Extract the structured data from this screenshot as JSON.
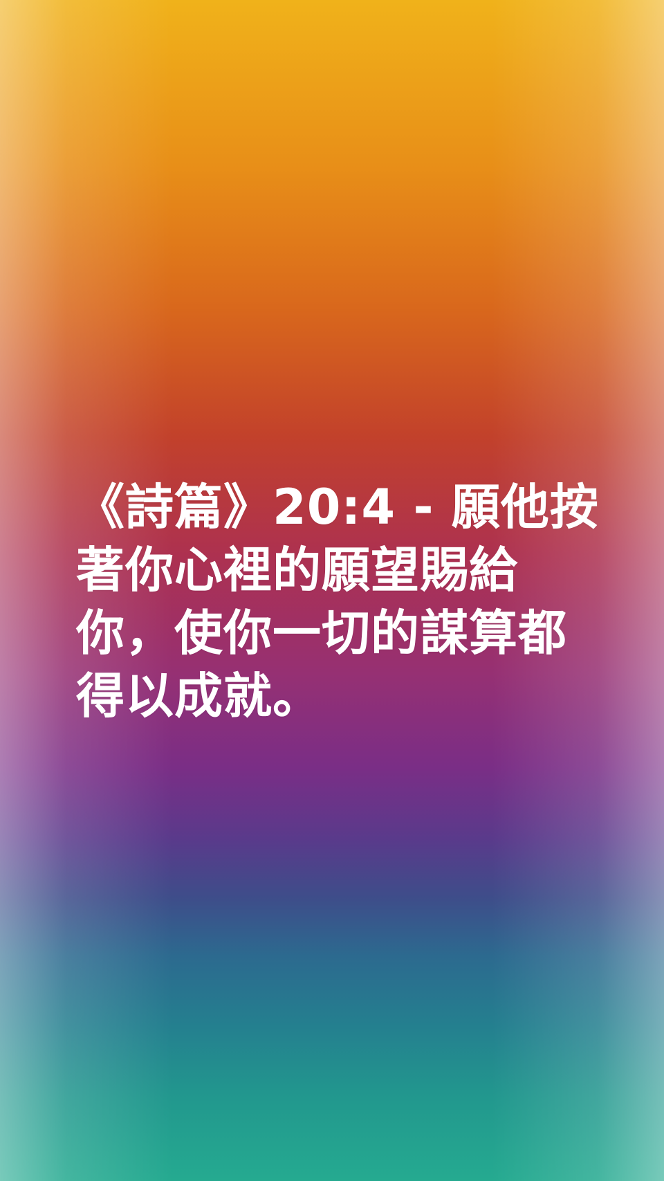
{
  "verse": {
    "text": "《詩篇》20:4 - 願他按著你心裡的願望賜給你，使你一切的謀算都得以成就。"
  },
  "background": {
    "colors_top_to_bottom": [
      "#f0b21a",
      "#d9681c",
      "#c2412b",
      "#963073",
      "#5a3a8b",
      "#2c6a8f",
      "#25aa90"
    ]
  }
}
